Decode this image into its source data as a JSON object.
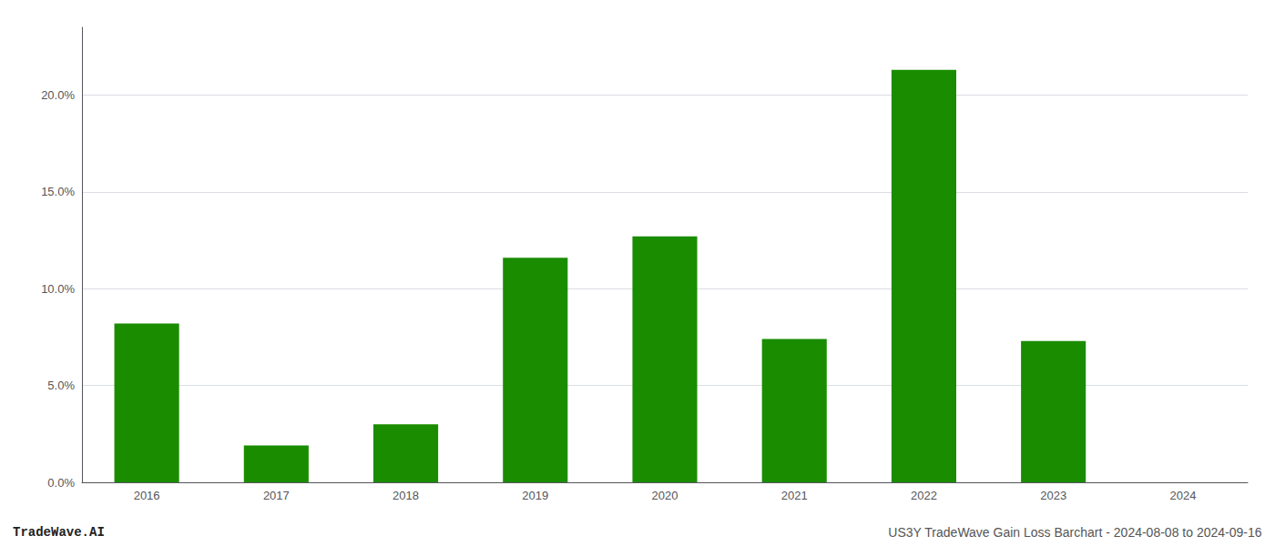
{
  "chart_data": {
    "type": "bar",
    "categories": [
      "2016",
      "2017",
      "2018",
      "2019",
      "2020",
      "2021",
      "2022",
      "2023",
      "2024"
    ],
    "values": [
      0.082,
      0.019,
      0.03,
      0.116,
      0.127,
      0.074,
      0.213,
      0.073,
      0.0
    ],
    "color": "#1a8c00",
    "ylim": [
      0,
      0.235
    ],
    "yticks": [
      {
        "value": 0.0,
        "label": "0.0%"
      },
      {
        "value": 0.05,
        "label": "5.0%"
      },
      {
        "value": 0.1,
        "label": "10.0%"
      },
      {
        "value": 0.15,
        "label": "15.0%"
      },
      {
        "value": 0.2,
        "label": "20.0%"
      }
    ],
    "grid": true,
    "annotations": [
      "TradeWave.AI",
      "US3Y TradeWave Gain Loss Barchart - 2024-08-08 to 2024-09-16"
    ]
  }
}
